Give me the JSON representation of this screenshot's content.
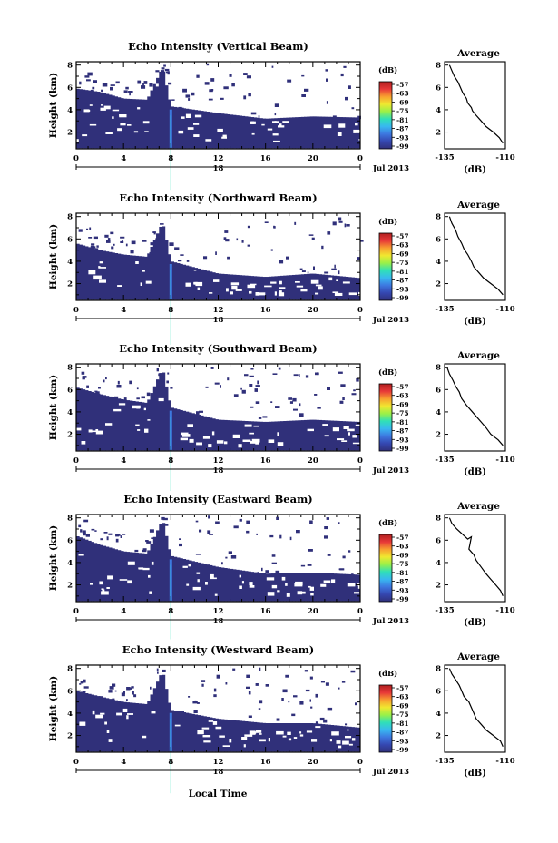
{
  "colors": {
    "background": "#ffffff",
    "colorbar_stops": [
      "#30307a",
      "#3547b0",
      "#3d78e0",
      "#38b8f0",
      "#30e0b8",
      "#9af048",
      "#f0e830",
      "#f8a030",
      "#e83838",
      "#b02020"
    ],
    "profile_line": "#000000"
  },
  "chart_data": [
    {
      "type": "heatmap",
      "title": "Echo Intensity (Vertical Beam)",
      "ylabel": "Height (km)",
      "xlabel_date": "Jul 2013",
      "xday": "18",
      "xticks": [
        "0",
        "4",
        "8",
        "12",
        "16",
        "20",
        "0"
      ],
      "yticks": [
        "2",
        "4",
        "6",
        "8"
      ],
      "xlim": [
        0,
        24
      ],
      "ylim": [
        0.5,
        8.3
      ],
      "colorbar": {
        "label": "(dB)",
        "ticks": [
          "-57",
          "-63",
          "-69",
          "-75",
          "-81",
          "-87",
          "-93",
          "-99"
        ]
      },
      "ticks_x": [
        0,
        4,
        8,
        12,
        16,
        20,
        24
      ],
      "ticks_y": [
        2,
        4,
        6,
        8
      ],
      "echo_top_km": [
        [
          0,
          5.9
        ],
        [
          2,
          5.6
        ],
        [
          4,
          5.0
        ],
        [
          6,
          4.9
        ],
        [
          7.3,
          7.8
        ],
        [
          8,
          4.3
        ],
        [
          12,
          3.7
        ],
        [
          16,
          3.2
        ],
        [
          20,
          3.4
        ],
        [
          24,
          3.3
        ]
      ],
      "spike_time_h": 8,
      "seed": 11,
      "profile": {
        "title": "Average",
        "xlabel": "(dB)",
        "xticks": [
          "-135",
          "-110"
        ],
        "yticks": [
          "2",
          "4",
          "6",
          "8"
        ],
        "xlim": [
          -135,
          -110
        ],
        "ylim": [
          0.5,
          8.3
        ],
        "points": [
          [
            -133.0,
            8.0
          ],
          [
            -132.0,
            7.5
          ],
          [
            -131.0,
            7.0
          ],
          [
            -129.5,
            6.5
          ],
          [
            -128.5,
            6.0
          ],
          [
            -127.5,
            5.5
          ],
          [
            -126.0,
            5.0
          ],
          [
            -125.5,
            4.6
          ],
          [
            -124.0,
            4.2
          ],
          [
            -123.5,
            3.9
          ],
          [
            -122.0,
            3.5
          ],
          [
            -120.0,
            3.0
          ],
          [
            -118.0,
            2.5
          ],
          [
            -115.0,
            2.0
          ],
          [
            -112.5,
            1.5
          ],
          [
            -111.0,
            1.0
          ]
        ]
      }
    },
    {
      "type": "heatmap",
      "title": "Echo Intensity (Northward Beam)",
      "ylabel": "Height (km)",
      "xlabel_date": "Jul 2013",
      "xday": "18",
      "xticks": [
        "0",
        "4",
        "8",
        "12",
        "16",
        "20",
        "0"
      ],
      "yticks": [
        "2",
        "4",
        "6",
        "8"
      ],
      "xlim": [
        0,
        24
      ],
      "ylim": [
        0.5,
        8.3
      ],
      "colorbar": {
        "label": "(dB)",
        "ticks": [
          "-57",
          "-63",
          "-69",
          "-75",
          "-81",
          "-87",
          "-93",
          "-99"
        ]
      },
      "ticks_x": [
        0,
        4,
        8,
        12,
        16,
        20,
        24
      ],
      "ticks_y": [
        2,
        4,
        6,
        8
      ],
      "echo_top_km": [
        [
          0,
          5.6
        ],
        [
          2,
          5.0
        ],
        [
          4,
          4.6
        ],
        [
          6,
          4.4
        ],
        [
          7.3,
          7.5
        ],
        [
          8,
          4.0
        ],
        [
          12,
          2.9
        ],
        [
          16,
          2.6
        ],
        [
          20,
          2.9
        ],
        [
          24,
          2.5
        ]
      ],
      "spike_time_h": 8,
      "seed": 23,
      "profile": {
        "title": "Average",
        "xlabel": "(dB)",
        "xticks": [
          "-135",
          "-110"
        ],
        "yticks": [
          "2",
          "4",
          "6",
          "8"
        ],
        "xlim": [
          -135,
          -110
        ],
        "ylim": [
          0.5,
          8.3
        ],
        "points": [
          [
            -133.0,
            8.0
          ],
          [
            -132.0,
            7.4
          ],
          [
            -130.5,
            6.8
          ],
          [
            -129.5,
            6.2
          ],
          [
            -128.0,
            5.6
          ],
          [
            -127.0,
            5.1
          ],
          [
            -125.5,
            4.6
          ],
          [
            -124.0,
            4.0
          ],
          [
            -123.0,
            3.5
          ],
          [
            -121.0,
            3.0
          ],
          [
            -119.0,
            2.5
          ],
          [
            -116.0,
            2.0
          ],
          [
            -113.0,
            1.5
          ],
          [
            -111.0,
            1.0
          ]
        ]
      }
    },
    {
      "type": "heatmap",
      "title": "Echo Intensity (Southward Beam)",
      "ylabel": "Height (km)",
      "xlabel_date": "Jul 2013",
      "xday": "18",
      "xticks": [
        "0",
        "4",
        "8",
        "12",
        "16",
        "20",
        "0"
      ],
      "yticks": [
        "2",
        "4",
        "6",
        "8"
      ],
      "xlim": [
        0,
        24
      ],
      "ylim": [
        0.5,
        8.3
      ],
      "colorbar": {
        "label": "(dB)",
        "ticks": [
          "-57",
          "-63",
          "-69",
          "-75",
          "-81",
          "-87",
          "-93",
          "-99"
        ]
      },
      "ticks_x": [
        0,
        4,
        8,
        12,
        16,
        20,
        24
      ],
      "ticks_y": [
        2,
        4,
        6,
        8
      ],
      "echo_top_km": [
        [
          0,
          6.2
        ],
        [
          2,
          5.6
        ],
        [
          4,
          5.1
        ],
        [
          6,
          4.8
        ],
        [
          7.3,
          7.9
        ],
        [
          8,
          4.4
        ],
        [
          12,
          3.3
        ],
        [
          16,
          3.1
        ],
        [
          20,
          3.3
        ],
        [
          24,
          3.1
        ]
      ],
      "spike_time_h": 8,
      "seed": 37,
      "profile": {
        "title": "Average",
        "xlabel": "(dB)",
        "xticks": [
          "-135",
          "-110"
        ],
        "yticks": [
          "2",
          "4",
          "6",
          "8"
        ],
        "xlim": [
          -135,
          -110
        ],
        "ylim": [
          0.5,
          8.3
        ],
        "points": [
          [
            -134.0,
            8.0
          ],
          [
            -133.0,
            7.4
          ],
          [
            -131.5,
            6.8
          ],
          [
            -130.5,
            6.3
          ],
          [
            -129.0,
            5.8
          ],
          [
            -128.0,
            5.2
          ],
          [
            -126.0,
            4.6
          ],
          [
            -124.0,
            4.1
          ],
          [
            -122.0,
            3.6
          ],
          [
            -120.0,
            3.1
          ],
          [
            -118.0,
            2.6
          ],
          [
            -116.0,
            2.0
          ],
          [
            -113.0,
            1.5
          ],
          [
            -111.0,
            1.0
          ]
        ]
      }
    },
    {
      "type": "heatmap",
      "title": "Echo Intensity (Eastward Beam)",
      "ylabel": "Height (km)",
      "xlabel_date": "Jul 2013",
      "xday": "18",
      "xticks": [
        "0",
        "4",
        "8",
        "12",
        "16",
        "20",
        "0"
      ],
      "yticks": [
        "2",
        "4",
        "6",
        "8"
      ],
      "xlim": [
        0,
        24
      ],
      "ylim": [
        0.5,
        8.3
      ],
      "colorbar": {
        "label": "(dB)",
        "ticks": [
          "-57",
          "-63",
          "-69",
          "-75",
          "-81",
          "-87",
          "-93",
          "-99"
        ]
      },
      "ticks_x": [
        0,
        4,
        8,
        12,
        16,
        20,
        24
      ],
      "ticks_y": [
        2,
        4,
        6,
        8
      ],
      "echo_top_km": [
        [
          0,
          6.4
        ],
        [
          2,
          5.6
        ],
        [
          4,
          5.0
        ],
        [
          6,
          4.8
        ],
        [
          7.3,
          7.9
        ],
        [
          8,
          4.6
        ],
        [
          12,
          3.6
        ],
        [
          16,
          3.0
        ],
        [
          20,
          3.1
        ],
        [
          24,
          2.9
        ]
      ],
      "spike_time_h": 8,
      "seed": 53,
      "profile": {
        "title": "Average",
        "xlabel": "(dB)",
        "xticks": [
          "-135",
          "-110"
        ],
        "yticks": [
          "2",
          "4",
          "6",
          "8"
        ],
        "xlim": [
          -135,
          -110
        ],
        "ylim": [
          0.5,
          8.3
        ],
        "points": [
          [
            -133.0,
            8.0
          ],
          [
            -132.0,
            7.5
          ],
          [
            -130.0,
            7.0
          ],
          [
            -128.0,
            6.6
          ],
          [
            -125.5,
            6.1
          ],
          [
            -124.0,
            6.3
          ],
          [
            -124.5,
            5.7
          ],
          [
            -125.0,
            5.2
          ],
          [
            -123.0,
            4.7
          ],
          [
            -122.0,
            4.2
          ],
          [
            -120.0,
            3.6
          ],
          [
            -118.0,
            3.0
          ],
          [
            -116.0,
            2.5
          ],
          [
            -114.0,
            2.0
          ],
          [
            -112.0,
            1.5
          ],
          [
            -111.0,
            1.0
          ]
        ]
      }
    },
    {
      "type": "heatmap",
      "title": "Echo Intensity (Westward Beam)",
      "ylabel": "Height (km)",
      "xlabel_date": "Jul 2013",
      "xday": "18",
      "xticks": [
        "0",
        "4",
        "8",
        "12",
        "16",
        "20",
        "0"
      ],
      "yticks": [
        "2",
        "4",
        "6",
        "8"
      ],
      "xlim": [
        0,
        24
      ],
      "ylim": [
        0.5,
        8.3
      ],
      "colorbar": {
        "label": "(dB)",
        "ticks": [
          "-57",
          "-63",
          "-69",
          "-75",
          "-81",
          "-87",
          "-93",
          "-99"
        ]
      },
      "ticks_x": [
        0,
        4,
        8,
        12,
        16,
        20,
        24
      ],
      "ticks_y": [
        2,
        4,
        6,
        8
      ],
      "echo_top_km": [
        [
          0,
          6.0
        ],
        [
          2,
          5.5
        ],
        [
          4,
          5.0
        ],
        [
          6,
          4.8
        ],
        [
          7.3,
          7.8
        ],
        [
          8,
          4.3
        ],
        [
          12,
          3.5
        ],
        [
          16,
          3.1
        ],
        [
          20,
          3.1
        ],
        [
          24,
          2.7
        ]
      ],
      "spike_time_h": 8,
      "seed": 71,
      "profile": {
        "title": "Average",
        "xlabel": "(dB)",
        "xticks": [
          "-135",
          "-110"
        ],
        "yticks": [
          "2",
          "4",
          "6",
          "8"
        ],
        "xlim": [
          -135,
          -110
        ],
        "ylim": [
          0.5,
          8.3
        ],
        "points": [
          [
            -133.0,
            8.0
          ],
          [
            -132.0,
            7.5
          ],
          [
            -130.5,
            7.0
          ],
          [
            -129.0,
            6.5
          ],
          [
            -128.0,
            6.0
          ],
          [
            -127.0,
            5.5
          ],
          [
            -125.0,
            5.0
          ],
          [
            -124.0,
            4.5
          ],
          [
            -123.0,
            4.0
          ],
          [
            -122.0,
            3.5
          ],
          [
            -120.0,
            3.0
          ],
          [
            -118.0,
            2.5
          ],
          [
            -115.0,
            2.0
          ],
          [
            -112.0,
            1.5
          ],
          [
            -111.0,
            1.0
          ]
        ]
      }
    }
  ],
  "footer": {
    "xlabel": "Local Time"
  }
}
